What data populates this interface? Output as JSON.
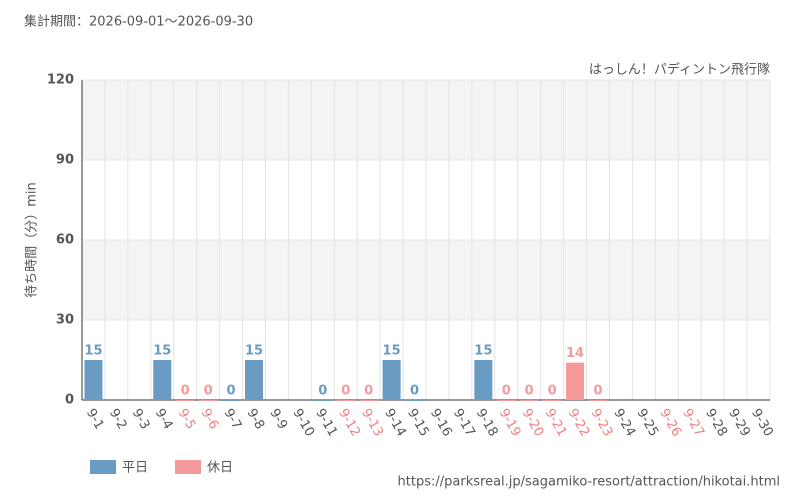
{
  "chart_data": {
    "type": "bar",
    "title": "集計期間：2026-09-01～2026-09-30",
    "subtitle": "はっしん！パディントン飛行隊",
    "y_label": "待ち時間（分）min",
    "source": "https://parksreal.jp/sagamiko-resort/attraction/hikotai.html",
    "categories": [
      "9-1",
      "9-2",
      "9-3",
      "9-4",
      "9-5",
      "9-6",
      "9-7",
      "9-8",
      "9-9",
      "9-10",
      "9-11",
      "9-12",
      "9-13",
      "9-14",
      "9-15",
      "9-16",
      "9-17",
      "9-18",
      "9-19",
      "9-20",
      "9-21",
      "9-22",
      "9-23",
      "9-24",
      "9-25",
      "9-26",
      "9-27",
      "9-28",
      "9-29",
      "9-30"
    ],
    "category_label_colors": [
      "#555",
      "#555",
      "#555",
      "#555",
      "#f08080",
      "#f08080",
      "#555",
      "#555",
      "#555",
      "#555",
      "#555",
      "#f08080",
      "#f08080",
      "#555",
      "#555",
      "#555",
      "#555",
      "#555",
      "#f08080",
      "#f08080",
      "#f08080",
      "#f08080",
      "#f08080",
      "#555",
      "#555",
      "#f08080",
      "#f08080",
      "#555",
      "#555",
      "#555"
    ],
    "series": [
      {
        "name": "平日",
        "color": "#6a9bc3",
        "values": [
          15,
          null,
          null,
          15,
          null,
          null,
          0,
          15,
          null,
          null,
          0,
          null,
          null,
          15,
          0,
          null,
          null,
          15,
          null,
          null,
          null,
          null,
          null,
          null,
          null,
          null,
          null,
          null,
          null,
          null
        ]
      },
      {
        "name": "休日",
        "color": "#f59a9a",
        "values": [
          null,
          null,
          null,
          null,
          0,
          0,
          null,
          null,
          null,
          null,
          null,
          0,
          0,
          null,
          null,
          null,
          null,
          null,
          0,
          0,
          0,
          14,
          0,
          null,
          null,
          null,
          null,
          null,
          null,
          null
        ]
      }
    ],
    "ylim": [
      0,
      120
    ],
    "yticks": [
      0,
      30,
      60,
      90,
      120
    ],
    "grid": true
  }
}
